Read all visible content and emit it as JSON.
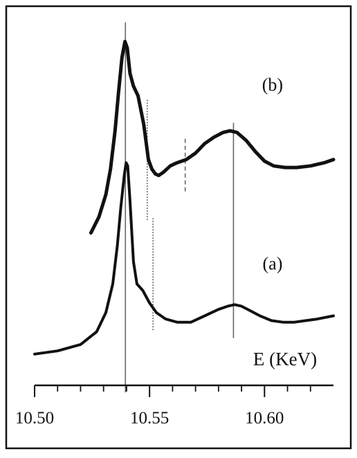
{
  "chart_data": {
    "type": "line",
    "xlabel": "E (KeV)",
    "xlim": [
      10.5,
      10.63
    ],
    "x_ticks": [
      10.5,
      10.55,
      10.6
    ],
    "x_tick_labels": [
      "10.50",
      "10.55",
      "10.60"
    ],
    "x_minor_ticks": [
      10.51,
      10.52,
      10.53,
      10.54,
      10.56,
      10.57,
      10.58,
      10.59,
      10.61,
      10.62
    ],
    "ylim": [
      0,
      1
    ],
    "y_axis_shown": false,
    "grid": false,
    "colors": {
      "curve": "#111111",
      "ref_line": "#666666",
      "frame": "#111111"
    },
    "series": [
      {
        "name": "(a)",
        "x": [
          10.5,
          10.51,
          10.52,
          10.527,
          10.531,
          10.534,
          10.536,
          10.5375,
          10.539,
          10.5398,
          10.5405,
          10.5415,
          10.543,
          10.5445,
          10.547,
          10.55,
          10.553,
          10.557,
          10.562,
          10.568,
          10.574,
          10.58,
          10.584,
          10.587,
          10.59,
          10.594,
          10.598,
          10.603,
          10.608,
          10.613,
          10.618,
          10.623,
          10.63
        ],
        "y": [
          0.02,
          0.03,
          0.05,
          0.09,
          0.15,
          0.24,
          0.36,
          0.48,
          0.58,
          0.62,
          0.61,
          0.5,
          0.31,
          0.24,
          0.22,
          0.18,
          0.15,
          0.13,
          0.12,
          0.12,
          0.14,
          0.16,
          0.17,
          0.175,
          0.17,
          0.155,
          0.14,
          0.125,
          0.12,
          0.12,
          0.125,
          0.13,
          0.14
        ]
      },
      {
        "name": "(b)",
        "x": [
          10.5245,
          10.528,
          10.531,
          10.533,
          10.535,
          10.5365,
          10.538,
          10.5393,
          10.5403,
          10.5415,
          10.543,
          10.545,
          10.5475,
          10.5495,
          10.551,
          10.5525,
          10.554,
          10.556,
          10.559,
          10.562,
          10.566,
          10.57,
          10.574,
          10.578,
          10.582,
          10.585,
          10.588,
          10.592,
          10.596,
          10.6,
          10.604,
          10.609,
          10.614,
          10.62,
          10.626,
          10.63
        ],
        "y": [
          0.4,
          0.45,
          0.52,
          0.6,
          0.72,
          0.84,
          0.95,
          1.0,
          0.98,
          0.9,
          0.86,
          0.83,
          0.74,
          0.63,
          0.6,
          0.585,
          0.58,
          0.59,
          0.61,
          0.62,
          0.63,
          0.65,
          0.68,
          0.7,
          0.715,
          0.72,
          0.715,
          0.69,
          0.655,
          0.625,
          0.61,
          0.605,
          0.605,
          0.61,
          0.62,
          0.63
        ]
      }
    ],
    "reference_lines": [
      {
        "x": 10.5395,
        "style": "solid",
        "from_y": -0.1,
        "to_y": 1.06
      },
      {
        "x": 10.5865,
        "style": "solid",
        "from_y": 0.07,
        "to_y": 0.745
      },
      {
        "x": 10.549,
        "style": "dotted",
        "from_y": 0.44,
        "to_y": 0.82
      },
      {
        "x": 10.5515,
        "style": "dotted",
        "from_y": 0.095,
        "to_y": 0.45
      },
      {
        "x": 10.5655,
        "style": "dashed",
        "from_y": 0.53,
        "to_y": 0.7
      }
    ],
    "annotations": [
      {
        "text": "(b)",
        "x": 10.6035,
        "y": 0.865
      },
      {
        "text": "(a)",
        "x": 10.6035,
        "y": 0.305
      }
    ]
  }
}
